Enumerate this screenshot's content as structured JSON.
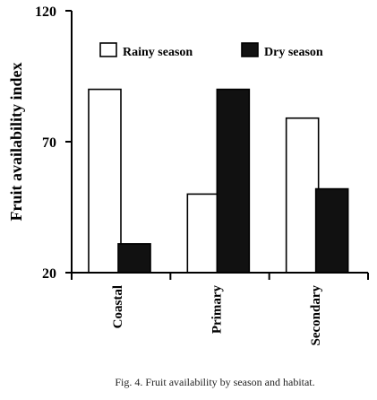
{
  "chart_data": {
    "type": "bar",
    "title": "",
    "ylabel": "Fruit availability index",
    "xlabel": "",
    "categories": [
      "Coastal",
      "Primary",
      "Secondary"
    ],
    "series": [
      {
        "name": "Rainy season",
        "values": [
          90,
          50,
          79
        ],
        "color": "#ffffff"
      },
      {
        "name": "Dry season",
        "values": [
          31,
          90,
          52
        ],
        "color": "#111111"
      }
    ],
    "ylim": [
      20,
      120
    ],
    "yticks": [
      "20",
      "70",
      "120"
    ],
    "yticks_values": [
      20,
      70,
      120
    ],
    "legend_position": "top",
    "grid": false
  },
  "caption": "Fig. 4. Fruit availability by season and habitat."
}
